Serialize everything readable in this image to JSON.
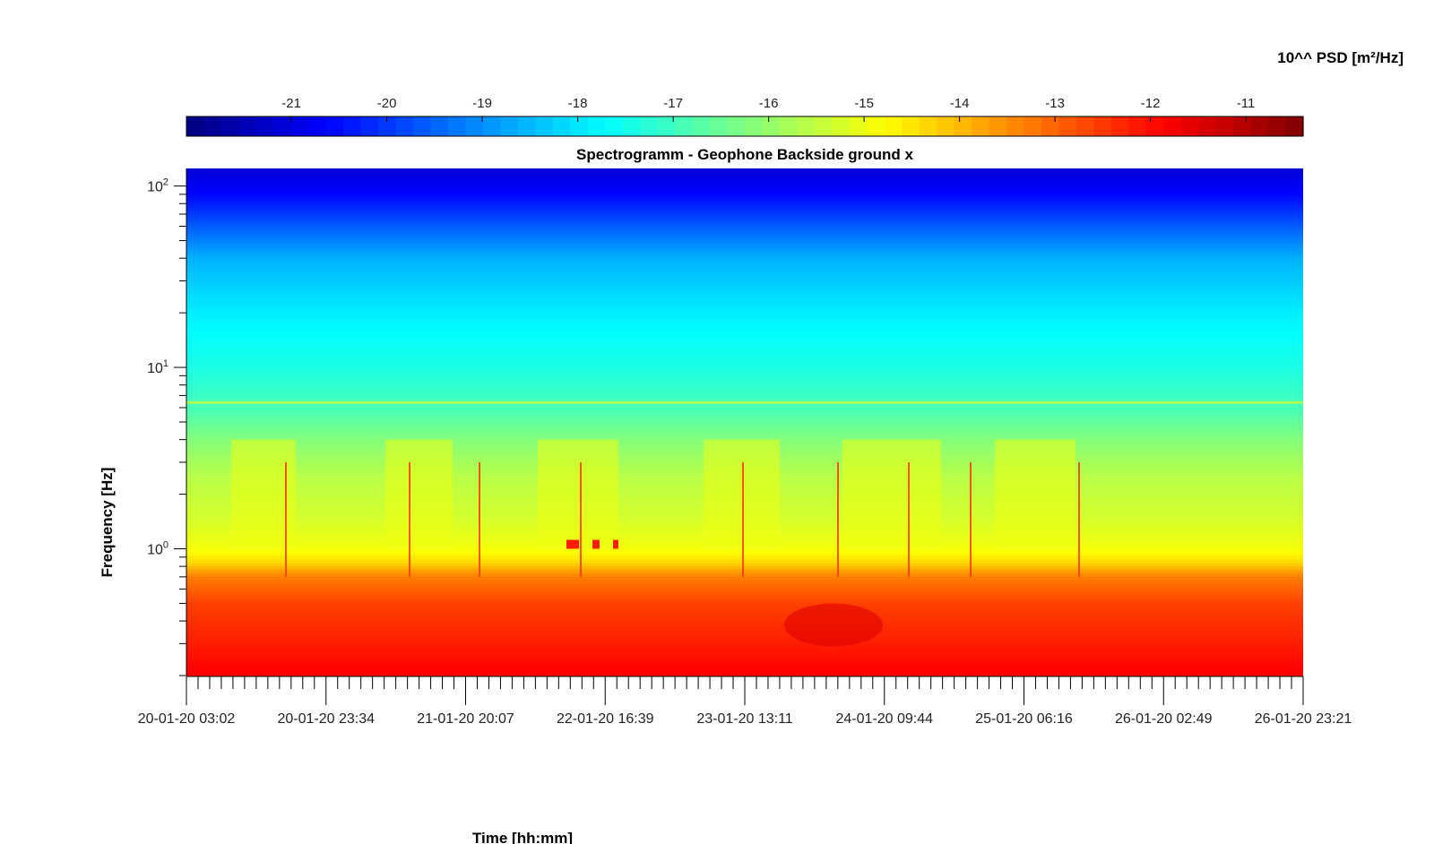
{
  "colors": {
    "colormap": "jet",
    "low": "#00008f",
    "high": "#800000",
    "axis": "#000000"
  },
  "chart_data": {
    "type": "heatmap",
    "title": "Spectrogramm - Geophone Backside ground x",
    "xlabel": "Time [hh:mm]",
    "ylabel": "Frequency [Hz]",
    "colorbar_label": "10^^ PSD [m²/Hz]",
    "y_scale": "log",
    "ylim": [
      0.2,
      125
    ],
    "x_ticks": [
      "20-01-20 03:02",
      "20-01-20 23:34",
      "21-01-20 20:07",
      "22-01-20 16:39",
      "23-01-20 13:11",
      "24-01-20 09:44",
      "25-01-20 06:16",
      "26-01-20 02:49",
      "26-01-20 23:21"
    ],
    "y_ticks": [
      {
        "value": 1,
        "base": "10",
        "exp": "0"
      },
      {
        "value": 10,
        "base": "10",
        "exp": "1"
      },
      {
        "value": 100,
        "base": "10",
        "exp": "2"
      }
    ],
    "colorbar_range": [
      -22.1,
      -10.4
    ],
    "colorbar_ticks": [
      "-21",
      "-20",
      "-19",
      "-18",
      "-17",
      "-16",
      "-15",
      "-14",
      "-13",
      "-12",
      "-11"
    ],
    "colorbar_tick_values": [
      -21,
      -20,
      -19,
      -18,
      -17,
      -16,
      -15,
      -14,
      -13,
      -12,
      -11
    ],
    "log_psd_profile": [
      {
        "freq_hz": 0.2,
        "log_psd": -11.8
      },
      {
        "freq_hz": 0.3,
        "log_psd": -12.2
      },
      {
        "freq_hz": 0.5,
        "log_psd": -12.6
      },
      {
        "freq_hz": 0.7,
        "log_psd": -13.3
      },
      {
        "freq_hz": 0.85,
        "log_psd": -14.4
      },
      {
        "freq_hz": 1.0,
        "log_psd": -14.9
      },
      {
        "freq_hz": 1.5,
        "log_psd": -15.3
      },
      {
        "freq_hz": 2.5,
        "log_psd": -15.6
      },
      {
        "freq_hz": 4.0,
        "log_psd": -16.2
      },
      {
        "freq_hz": 6.0,
        "log_psd": -16.9
      },
      {
        "freq_hz": 10,
        "log_psd": -17.4
      },
      {
        "freq_hz": 20,
        "log_psd": -17.9
      },
      {
        "freq_hz": 40,
        "log_psd": -18.6
      },
      {
        "freq_hz": 60,
        "log_psd": -19.6
      },
      {
        "freq_hz": 90,
        "log_psd": -20.6
      },
      {
        "freq_hz": 125,
        "log_psd": -21.1
      }
    ],
    "grid": false
  }
}
